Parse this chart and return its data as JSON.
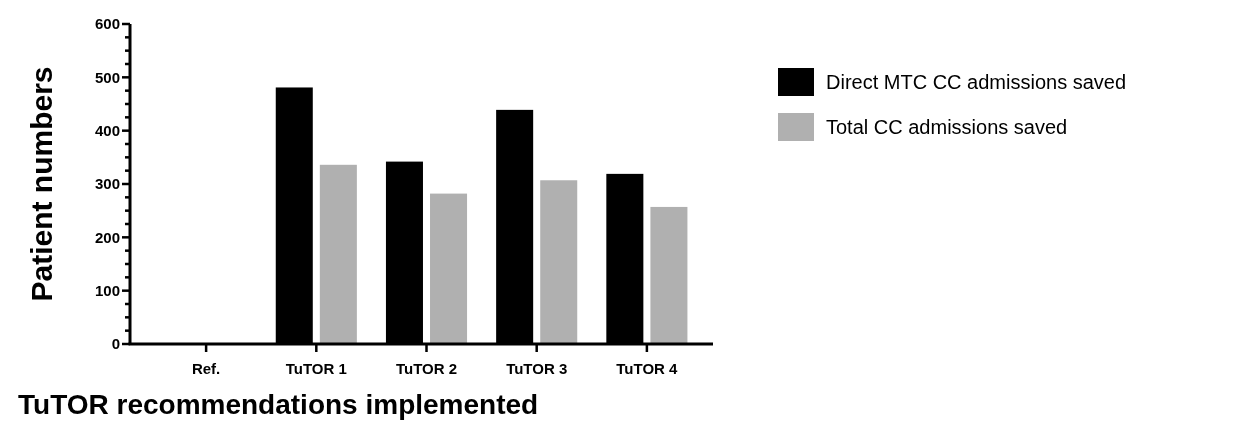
{
  "chart_data": {
    "type": "bar",
    "xlabel": "TuTOR recommendations implemented",
    "ylabel": "Patient numbers",
    "categories": [
      "Ref.",
      "TuTOR 1",
      "TuTOR 2",
      "TuTOR 3",
      "TuTOR 4"
    ],
    "series": [
      {
        "name": "Direct MTC CC admissions saved",
        "color": "#000000",
        "values": [
          0,
          481,
          342,
          439,
          319
        ]
      },
      {
        "name": "Total CC admissions saved",
        "color": "#b0b0b0",
        "values": [
          0,
          336,
          282,
          307,
          257
        ]
      }
    ],
    "ylim": [
      0,
      600
    ],
    "yticks": [
      0,
      {
        "value": 25,
        "label": null
      },
      {
        "value": 50,
        "label": null
      },
      {
        "value": 75,
        "label": null
      },
      100,
      {
        "value": 125,
        "label": null
      },
      {
        "value": 150,
        "label": null
      },
      {
        "value": 175,
        "label": null
      },
      200,
      {
        "value": 225,
        "label": null
      },
      {
        "value": 250,
        "label": null
      },
      {
        "value": 275,
        "label": null
      },
      300,
      {
        "value": 325,
        "label": null
      },
      {
        "value": 350,
        "label": null
      },
      {
        "value": 375,
        "label": null
      },
      400,
      {
        "value": 425,
        "label": null
      },
      {
        "value": 450,
        "label": null
      },
      {
        "value": 475,
        "label": null
      },
      500,
      {
        "value": 525,
        "label": null
      },
      {
        "value": 550,
        "label": null
      },
      {
        "value": 575,
        "label": null
      },
      600
    ],
    "grid": false,
    "legend": "right"
  }
}
